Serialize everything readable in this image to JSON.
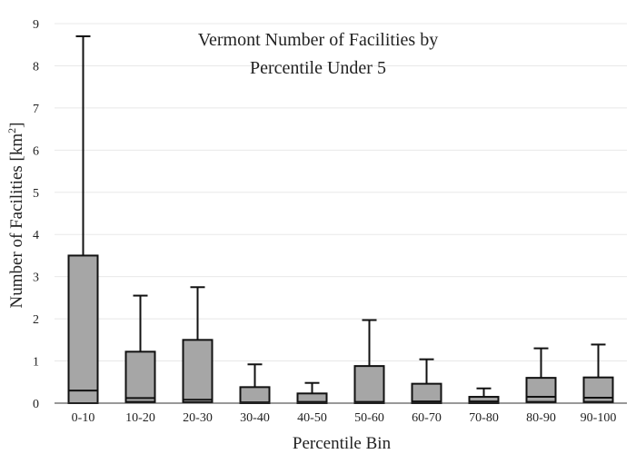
{
  "chart_data": {
    "type": "boxplot",
    "title_line1": "Vermont Number of Facilities by",
    "title_line2": "Percentile Under 5",
    "xlabel": "Percentile Bin",
    "ylabel_main": "Number of Facilities  [km",
    "ylabel_sup": "2",
    "ylabel_close": "]",
    "ylim": [
      0,
      9
    ],
    "yticks": [
      "0",
      "1",
      "2",
      "3",
      "4",
      "5",
      "6",
      "7",
      "8",
      "9"
    ],
    "grid": true,
    "colors": {
      "box_fill": "#a6a6a6",
      "stroke": "#111111",
      "grid": "#e8e8e8"
    },
    "categories": [
      "0-10",
      "10-20",
      "20-30",
      "30-40",
      "40-50",
      "50-60",
      "60-70",
      "70-80",
      "80-90",
      "90-100"
    ],
    "boxes": [
      {
        "q1": 0.0,
        "median": 0.3,
        "q3": 3.5,
        "whisker_high": 8.7
      },
      {
        "q1": 0.03,
        "median": 0.12,
        "q3": 1.22,
        "whisker_high": 2.55
      },
      {
        "q1": 0.02,
        "median": 0.08,
        "q3": 1.5,
        "whisker_high": 2.75
      },
      {
        "q1": 0.0,
        "median": 0.02,
        "q3": 0.38,
        "whisker_high": 0.92
      },
      {
        "q1": 0.0,
        "median": 0.03,
        "q3": 0.23,
        "whisker_high": 0.48
      },
      {
        "q1": 0.0,
        "median": 0.03,
        "q3": 0.88,
        "whisker_high": 1.97
      },
      {
        "q1": 0.0,
        "median": 0.04,
        "q3": 0.46,
        "whisker_high": 1.04
      },
      {
        "q1": 0.0,
        "median": 0.04,
        "q3": 0.15,
        "whisker_high": 0.35
      },
      {
        "q1": 0.03,
        "median": 0.15,
        "q3": 0.6,
        "whisker_high": 1.3
      },
      {
        "q1": 0.03,
        "median": 0.13,
        "q3": 0.61,
        "whisker_high": 1.39
      }
    ]
  }
}
